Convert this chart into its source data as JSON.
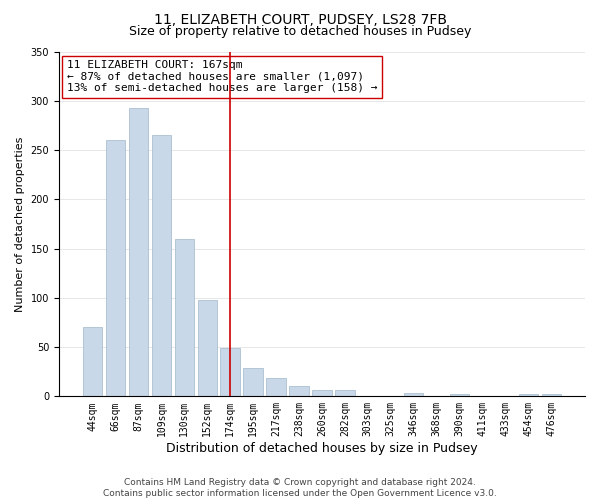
{
  "title": "11, ELIZABETH COURT, PUDSEY, LS28 7FB",
  "subtitle": "Size of property relative to detached houses in Pudsey",
  "xlabel": "Distribution of detached houses by size in Pudsey",
  "ylabel": "Number of detached properties",
  "bar_labels": [
    "44sqm",
    "66sqm",
    "87sqm",
    "109sqm",
    "130sqm",
    "152sqm",
    "174sqm",
    "195sqm",
    "217sqm",
    "238sqm",
    "260sqm",
    "282sqm",
    "303sqm",
    "325sqm",
    "346sqm",
    "368sqm",
    "390sqm",
    "411sqm",
    "433sqm",
    "454sqm",
    "476sqm"
  ],
  "bar_values": [
    70,
    260,
    293,
    265,
    160,
    98,
    49,
    29,
    19,
    10,
    6,
    6,
    0,
    0,
    3,
    0,
    2,
    0,
    0,
    2,
    2
  ],
  "bar_color": "#c8d8e8",
  "bar_edge_color": "#a0b8cc",
  "vline_x": 6,
  "vline_color": "#cc0000",
  "ylim": [
    0,
    350
  ],
  "annotation_box_text": "11 ELIZABETH COURT: 167sqm\n← 87% of detached houses are smaller (1,097)\n13% of semi-detached houses are larger (158) →",
  "footnote": "Contains HM Land Registry data © Crown copyright and database right 2024.\nContains public sector information licensed under the Open Government Licence v3.0.",
  "title_fontsize": 10,
  "subtitle_fontsize": 9,
  "xlabel_fontsize": 9,
  "ylabel_fontsize": 8,
  "tick_fontsize": 7,
  "annotation_fontsize": 8,
  "footnote_fontsize": 6.5
}
